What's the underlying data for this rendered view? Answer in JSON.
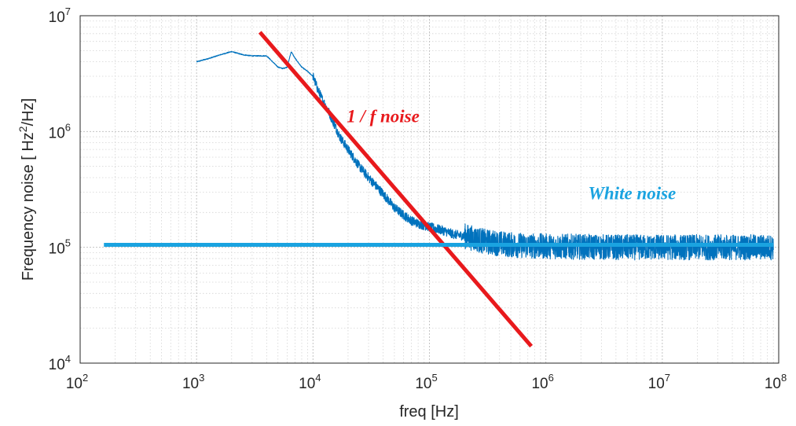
{
  "chart_data": {
    "type": "line",
    "xlabel": "freq [Hz]",
    "ylabel_parts": {
      "prefix": "Frequency noise [ Hz",
      "sup": "2",
      "suffix": "/Hz]"
    },
    "x_scale": "log",
    "y_scale": "log",
    "xlim": [
      100,
      100000000
    ],
    "ylim": [
      10000,
      10000000
    ],
    "x_ticks": [
      {
        "base": "10",
        "exp": "2",
        "value": 100
      },
      {
        "base": "10",
        "exp": "3",
        "value": 1000
      },
      {
        "base": "10",
        "exp": "4",
        "value": 10000
      },
      {
        "base": "10",
        "exp": "5",
        "value": 100000
      },
      {
        "base": "10",
        "exp": "6",
        "value": 1000000
      },
      {
        "base": "10",
        "exp": "7",
        "value": 10000000
      },
      {
        "base": "10",
        "exp": "8",
        "value": 100000000
      }
    ],
    "y_ticks": [
      {
        "base": "10",
        "exp": "4",
        "value": 10000
      },
      {
        "base": "10",
        "exp": "5",
        "value": 100000
      },
      {
        "base": "10",
        "exp": "6",
        "value": 1000000
      },
      {
        "base": "10",
        "exp": "7",
        "value": 10000000
      }
    ],
    "grid": true,
    "minor_grid": true,
    "series": [
      {
        "color": "#0072bd",
        "x": [
          1000,
          1300,
          1600,
          2000,
          2500,
          3000,
          4000,
          5000,
          5500,
          6000,
          6500,
          7000,
          8000,
          9000,
          10000,
          11000,
          12000,
          14000,
          17000,
          20000,
          25000,
          30000,
          40000,
          50000,
          60000,
          70000,
          80000,
          100000,
          130000,
          160000,
          200000,
          250000,
          300000,
          400000,
          500000,
          700000,
          1000000,
          2000000,
          5000000,
          10000000,
          30000000,
          90000000
        ],
        "y": [
          4000000,
          4300000,
          4600000,
          4900000,
          4600000,
          4500000,
          4500000,
          3600000,
          3500000,
          3600000,
          4900000,
          4300000,
          3600000,
          3300000,
          3000000,
          2300000,
          1900000,
          1400000,
          900000,
          700000,
          500000,
          400000,
          290000,
          220000,
          190000,
          170000,
          160000,
          150000,
          140000,
          130000,
          125000,
          118000,
          112000,
          108000,
          105000,
          103000,
          102000,
          101000,
          100000,
          100000,
          100000,
          100000
        ]
      }
    ],
    "fit_lines": [
      {
        "name": "1 / f noise",
        "color": "#e8191c",
        "x": [
          3500,
          750000
        ],
        "y": [
          7200000,
          14000
        ]
      },
      {
        "name": "White noise",
        "color": "#1aa3e0",
        "x": [
          160,
          90000000
        ],
        "y": [
          105000,
          105000
        ]
      }
    ],
    "annotations": [
      {
        "text": "1 / f noise",
        "color": "#e8191c",
        "x": 40000,
        "y": 1200000
      },
      {
        "text": "White noise",
        "color": "#1aa3e0",
        "x": 5500000,
        "y": 260000
      }
    ]
  }
}
